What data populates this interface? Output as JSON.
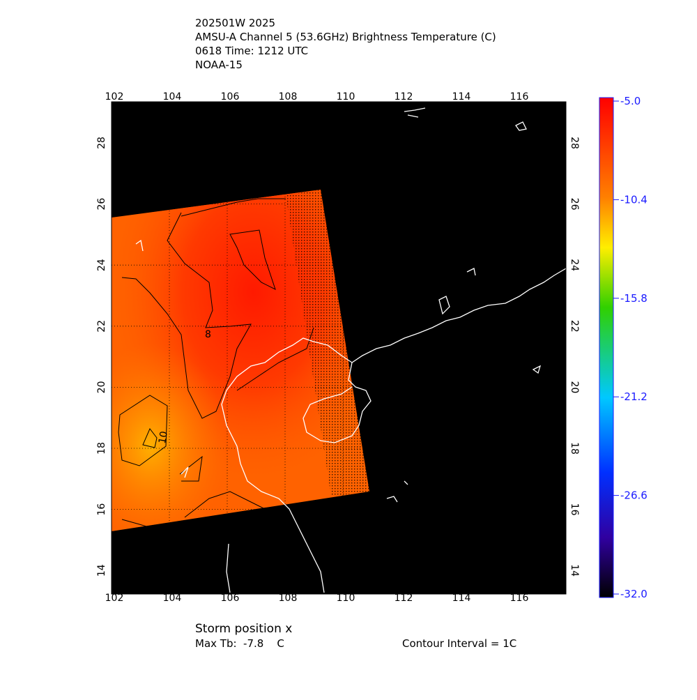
{
  "header": {
    "lines": [
      "202501W 2025",
      "AMSU-A Channel 5 (53.6GHz) Brightness Temperature (C)",
      "0618 Time: 1212 UTC",
      "NOAA-15"
    ]
  },
  "map": {
    "lon_ticks": [
      102,
      104,
      106,
      108,
      110,
      112,
      114,
      116
    ],
    "lat_ticks": [
      28,
      26,
      24,
      22,
      20,
      18,
      16,
      14
    ],
    "contour_labels": [
      "8",
      "10"
    ]
  },
  "colorbar": {
    "labels": [
      "-5.0",
      "-10.4",
      "-15.8",
      "-21.2",
      "-26.6",
      "-32.0"
    ]
  },
  "footer": {
    "storm_position": "Storm position x",
    "max_tb": "Max Tb:  -7.8    C",
    "contour_interval": "Contour Interval = 1C"
  }
}
